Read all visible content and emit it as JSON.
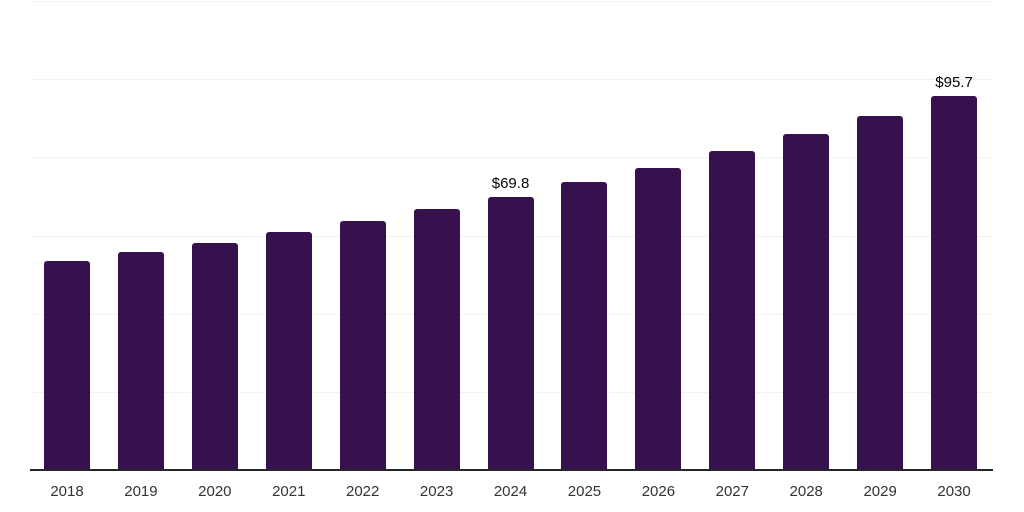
{
  "chart_data": {
    "type": "bar",
    "title": "",
    "xlabel": "",
    "ylabel": "",
    "categories": [
      "2018",
      "2019",
      "2020",
      "2021",
      "2022",
      "2023",
      "2024",
      "2025",
      "2026",
      "2027",
      "2028",
      "2029",
      "2030"
    ],
    "values": [
      53.5,
      55.9,
      58.2,
      60.8,
      63.6,
      66.7,
      69.8,
      73.6,
      77.2,
      81.5,
      85.9,
      90.7,
      95.7
    ],
    "data_labels": [
      "",
      "",
      "",
      "",
      "",
      "",
      "$69.8",
      "",
      "",
      "",
      "",
      "",
      "$95.7"
    ],
    "ylim": [
      0,
      120
    ],
    "grid_interval": 20,
    "grid_visible": true,
    "legend_position": "none",
    "colors": {
      "bar": "#36114E",
      "gridline": "#f2f2f2",
      "axis": "#262626",
      "tick_label": "#333333",
      "data_label": "#050505",
      "background": "#ffffff"
    }
  }
}
